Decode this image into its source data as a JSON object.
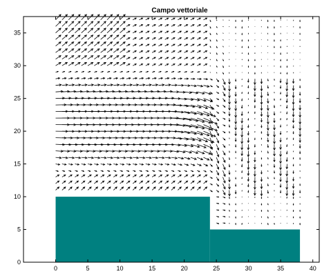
{
  "chart_data": {
    "type": "quiver",
    "title": "Campo vettoriale",
    "xlabel": "",
    "ylabel": "",
    "xlim": [
      -5,
      41
    ],
    "ylim": [
      0,
      37.5
    ],
    "xticks": [
      0,
      5,
      10,
      15,
      20,
      25,
      30,
      35,
      40
    ],
    "yticks": [
      0,
      5,
      10,
      15,
      20,
      25,
      30,
      35
    ],
    "grid": false,
    "box": true,
    "colors": {
      "arrow": "#000000",
      "obstacle": "#008080",
      "axes": "#000000"
    },
    "obstacles": [
      {
        "x": [
          0,
          24
        ],
        "y": [
          0,
          10
        ]
      },
      {
        "x": [
          24,
          38
        ],
        "y": [
          0,
          5
        ]
      }
    ],
    "field": {
      "grid_x": [
        0,
        38
      ],
      "grid_y": [
        0,
        37
      ],
      "spacing": 1,
      "description": "vortex-like flow field above a stepped obstacle; strong rightward flow between y=15 and y=28 over x=0–22, curving downward near x=22–26, weaker vertical flow for x>25"
    }
  }
}
